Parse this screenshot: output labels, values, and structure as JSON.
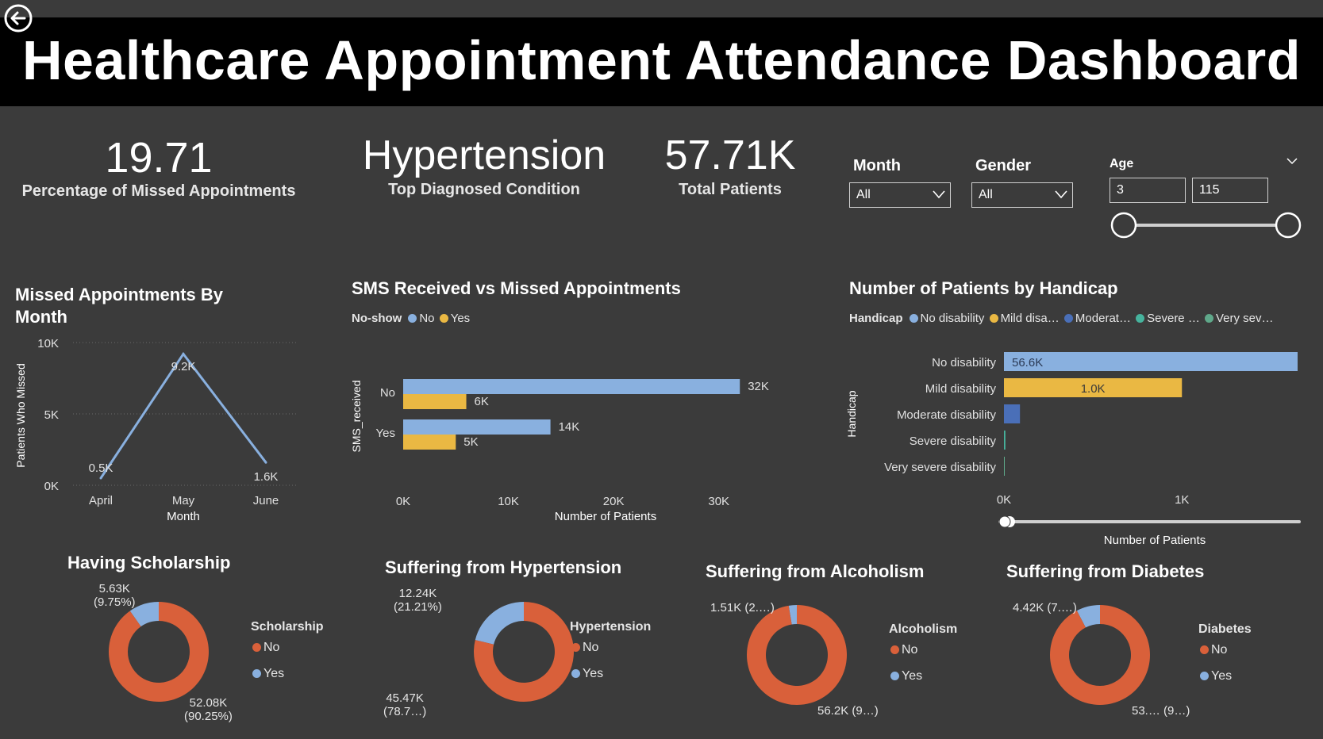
{
  "header": {
    "title": "Healthcare Appointment Attendance Dashboard"
  },
  "kpis": [
    {
      "value": "19.71",
      "label": "Percentage of Missed Appointments"
    },
    {
      "value": "Hypertension",
      "label": "Top Diagnosed Condition"
    },
    {
      "value": "57.71K",
      "label": "Total Patients"
    }
  ],
  "filters": {
    "month": {
      "title": "Month",
      "value": "All"
    },
    "gender": {
      "title": "Gender",
      "value": "All"
    },
    "age": {
      "title": "Age",
      "min": "3",
      "max": "115"
    }
  },
  "colors": {
    "blue": "#89b0df",
    "yellow": "#eab843",
    "orange": "#d9603a",
    "darkblue": "#4a6fb8",
    "teal": "#46b39d",
    "green": "#5fa88a"
  },
  "chart_data": [
    {
      "type": "line",
      "title": "Missed Appointments By Month",
      "xlabel": "Month",
      "ylabel": "Patients Who Missed",
      "categories": [
        "April",
        "May",
        "June"
      ],
      "values": [
        500,
        9200,
        1600
      ],
      "data_labels": [
        "0.5K",
        "9.2K",
        "1.6K"
      ],
      "yticks": [
        "0K",
        "5K",
        "10K"
      ],
      "ylim": [
        0,
        10000
      ]
    },
    {
      "type": "bar",
      "orientation": "horizontal",
      "title": "SMS Received vs Missed Appointments",
      "legend_title": "No-show",
      "xlabel": "Number of Patients",
      "ylabel": "SMS_received",
      "categories": [
        "No",
        "Yes"
      ],
      "series": [
        {
          "name": "No",
          "values": [
            32000,
            14000
          ],
          "labels": [
            "32K",
            "14K"
          ]
        },
        {
          "name": "Yes",
          "values": [
            6000,
            5000
          ],
          "labels": [
            "6K",
            "5K"
          ]
        }
      ],
      "xticks": [
        "0K",
        "10K",
        "20K",
        "30K"
      ],
      "xlim": [
        0,
        35000
      ]
    },
    {
      "type": "bar",
      "orientation": "horizontal",
      "title": "Number of Patients by Handicap",
      "legend_title": "Handicap",
      "legend_labels": [
        "No disability",
        "Mild disa…",
        "Moderat…",
        "Severe …",
        "Very sev…"
      ],
      "xlabel": "Number of Patients",
      "ylabel": "Handicap",
      "categories": [
        "No disability",
        "Mild disability",
        "Moderate disability",
        "Severe disability",
        "Very severe disability"
      ],
      "values": [
        56600,
        1000,
        90,
        8,
        2
      ],
      "data_labels": [
        "56.6K",
        "1.0K",
        "",
        "",
        ""
      ],
      "xticks": [
        "0K",
        "1K"
      ],
      "xlim": [
        0,
        1650
      ]
    },
    {
      "type": "pie",
      "title": "Having Scholarship",
      "legend_title": "Scholarship",
      "categories": [
        "No",
        "Yes"
      ],
      "values": [
        52080,
        5630
      ],
      "labels": [
        "52.08K\n(90.25%)",
        "5.63K\n(9.75%)"
      ]
    },
    {
      "type": "pie",
      "title": "Suffering from Hypertension",
      "legend_title": "Hypertension",
      "categories": [
        "No",
        "Yes"
      ],
      "values": [
        45470,
        12240
      ],
      "labels": [
        "45.47K\n(78.7…)",
        "12.24K\n(21.21%)"
      ]
    },
    {
      "type": "pie",
      "title": "Suffering from Alcoholism",
      "legend_title": "Alcoholism",
      "categories": [
        "No",
        "Yes"
      ],
      "values": [
        56200,
        1510
      ],
      "labels": [
        "56.2K (9…)",
        "1.51K (2.…)"
      ]
    },
    {
      "type": "pie",
      "title": "Suffering from Diabetes",
      "legend_title": "Diabetes",
      "categories": [
        "No",
        "Yes"
      ],
      "values": [
        53290,
        4420
      ],
      "labels": [
        "53.… (9…)",
        "4.42K (7.…)"
      ]
    }
  ]
}
